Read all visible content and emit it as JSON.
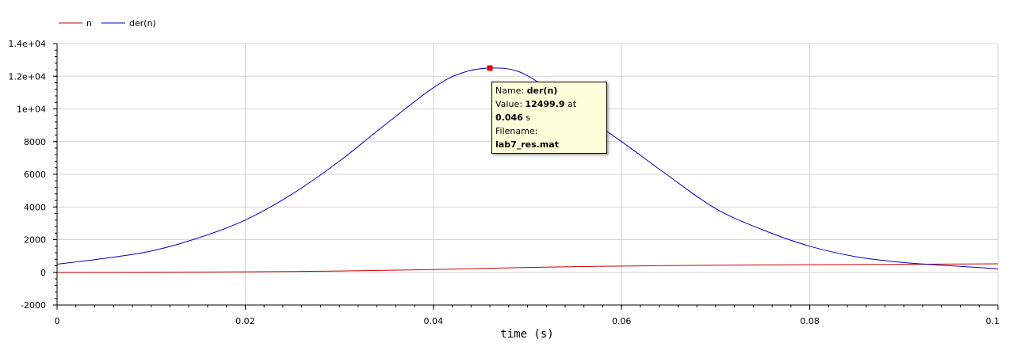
{
  "chart_data": {
    "type": "line",
    "xlabel": "time (s)",
    "ylabel": "",
    "xlim": [
      0,
      0.1
    ],
    "ylim": [
      -2000,
      14000
    ],
    "x_ticks": [
      "0",
      "0.02",
      "0.04",
      "0.06",
      "0.08",
      "0.1"
    ],
    "y_ticks": [
      "-2000",
      "0",
      "2000",
      "4000",
      "6000",
      "8000",
      "1e+04",
      "1.2e+04",
      "1.4e+04"
    ],
    "grid": true,
    "legend_position": "top-left",
    "series": [
      {
        "name": "n",
        "color": "#cc0000",
        "x": [
          0,
          0.01,
          0.02,
          0.03,
          0.04,
          0.05,
          0.06,
          0.07,
          0.08,
          0.09,
          0.1
        ],
        "y": [
          0,
          10,
          30,
          80,
          170,
          300,
          380,
          440,
          470,
          490,
          520
        ]
      },
      {
        "name": "der(n)",
        "color": "#0000cc",
        "x": [
          0,
          0.005,
          0.01,
          0.015,
          0.02,
          0.025,
          0.03,
          0.035,
          0.04,
          0.043,
          0.046,
          0.049,
          0.052,
          0.055,
          0.06,
          0.065,
          0.07,
          0.075,
          0.08,
          0.085,
          0.09,
          0.095,
          0.1
        ],
        "y": [
          500,
          850,
          1300,
          2100,
          3200,
          4800,
          6800,
          9100,
          11300,
          12200,
          12500,
          12300,
          11300,
          10000,
          8000,
          5900,
          3900,
          2600,
          1600,
          950,
          600,
          400,
          220
        ]
      }
    ],
    "marker": {
      "series": "der(n)",
      "x": 0.046,
      "y": 12499.9,
      "color": "#ee0000"
    }
  },
  "tooltip": {
    "name_label": "Name:",
    "name_value": "der(n)",
    "value_label": "Value:",
    "value_value": "12499.9",
    "at_label": "at",
    "time_value": "0.046",
    "unit": "s",
    "file_label": "Filename:",
    "file_value": "lab7_res.mat"
  }
}
